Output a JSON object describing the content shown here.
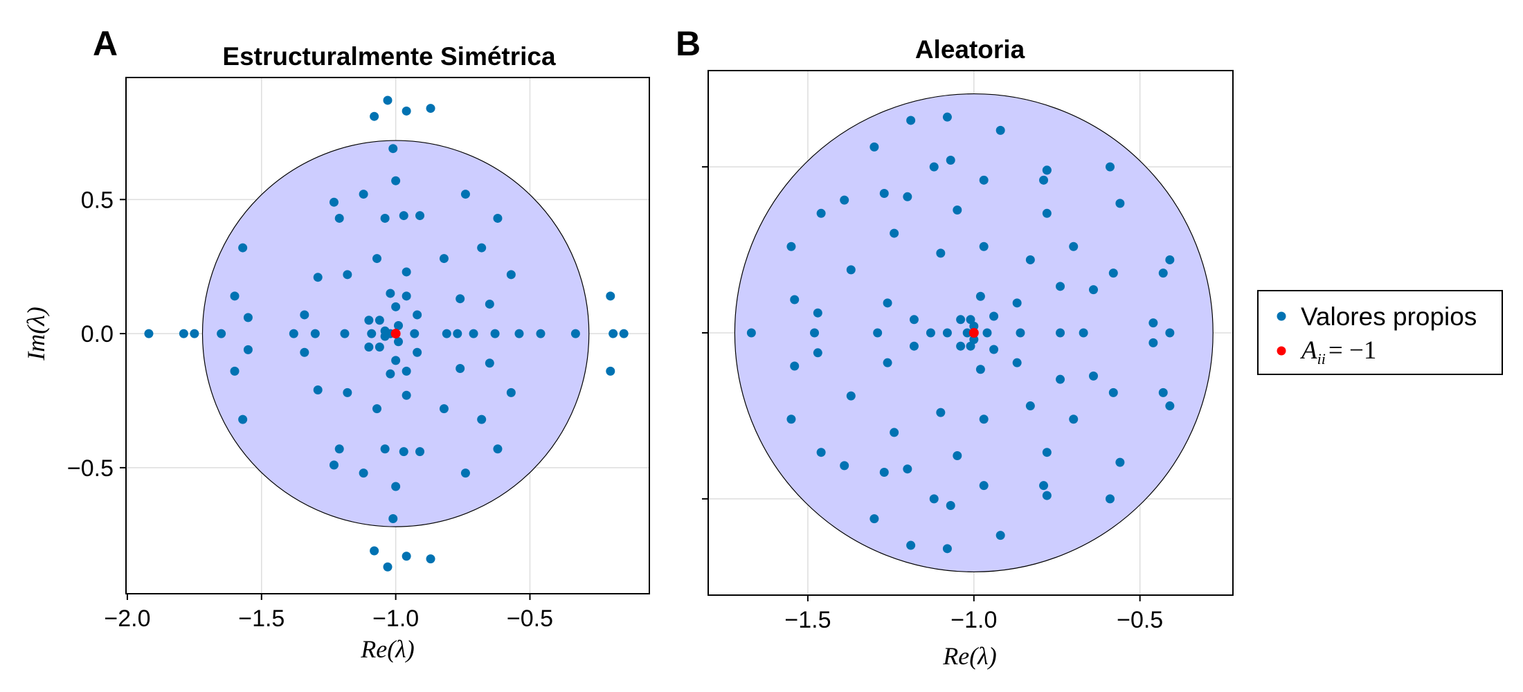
{
  "chart_data": [
    {
      "type": "scatter",
      "panel": "A",
      "title": "Estructuralmente Simétrica",
      "xlabel": "Re(λ)",
      "ylabel": "Im(λ)",
      "xlim": [
        -2.005,
        -0.055
      ],
      "ylim": [
        -0.97,
        0.955
      ],
      "xticks": [
        -2.0,
        -1.5,
        -1.0,
        -0.5
      ],
      "xtick_labels": [
        "−2.0",
        "−1.5",
        "−1.0",
        "−0.5"
      ],
      "yticks": [
        -0.5,
        0.0,
        0.5
      ],
      "ytick_labels": [
        "−0.5",
        "0.0",
        "0.5"
      ],
      "grid": true,
      "circle": {
        "center": [
          -1.0,
          0.0
        ],
        "radius": 0.72,
        "fill": "#ccccff",
        "stroke": "#000000"
      },
      "series": [
        {
          "name": "Valores propios",
          "color": "#0072b2",
          "points": [
            [
              -1.92,
              0.0
            ],
            [
              -1.79,
              0.0
            ],
            [
              -1.75,
              0.0
            ],
            [
              -1.65,
              0.0
            ],
            [
              -1.57,
              0.32
            ],
            [
              -1.57,
              -0.32
            ],
            [
              -1.6,
              0.14
            ],
            [
              -1.6,
              -0.14
            ],
            [
              -1.55,
              0.06
            ],
            [
              -1.55,
              -0.06
            ],
            [
              -1.38,
              0.0
            ],
            [
              -1.34,
              0.07
            ],
            [
              -1.34,
              -0.07
            ],
            [
              -1.29,
              0.21
            ],
            [
              -1.29,
              -0.21
            ],
            [
              -1.3,
              0.0
            ],
            [
              -1.23,
              0.49
            ],
            [
              -1.23,
              -0.49
            ],
            [
              -1.21,
              0.43
            ],
            [
              -1.21,
              -0.43
            ],
            [
              -1.18,
              0.22
            ],
            [
              -1.18,
              -0.22
            ],
            [
              -1.19,
              0.0
            ],
            [
              -1.12,
              0.52
            ],
            [
              -1.12,
              -0.52
            ],
            [
              -1.1,
              0.05
            ],
            [
              -1.1,
              -0.05
            ],
            [
              -1.09,
              0.0
            ],
            [
              -1.07,
              0.28
            ],
            [
              -1.07,
              -0.28
            ],
            [
              -1.06,
              0.05
            ],
            [
              -1.06,
              -0.05
            ],
            [
              -1.04,
              0.43
            ],
            [
              -1.04,
              -0.43
            ],
            [
              -1.04,
              0.01
            ],
            [
              -1.04,
              -0.01
            ],
            [
              -1.02,
              0.15
            ],
            [
              -1.02,
              -0.15
            ],
            [
              -1.02,
              0.0
            ],
            [
              -1.01,
              0.69
            ],
            [
              -1.01,
              -0.69
            ],
            [
              -1.0,
              0.1
            ],
            [
              -1.0,
              -0.1
            ],
            [
              -1.0,
              0.57
            ],
            [
              -1.0,
              -0.57
            ],
            [
              -0.99,
              0.03
            ],
            [
              -0.99,
              -0.03
            ],
            [
              -0.97,
              0.44
            ],
            [
              -0.97,
              -0.44
            ],
            [
              -0.96,
              0.23
            ],
            [
              -0.96,
              -0.23
            ],
            [
              -0.96,
              0.14
            ],
            [
              -0.96,
              -0.14
            ],
            [
              -0.93,
              0.0
            ],
            [
              -0.92,
              0.07
            ],
            [
              -0.92,
              -0.07
            ],
            [
              -0.91,
              0.44
            ],
            [
              -0.91,
              -0.44
            ],
            [
              -0.82,
              0.28
            ],
            [
              -0.82,
              -0.28
            ],
            [
              -0.81,
              0.0
            ],
            [
              -0.77,
              0.0
            ],
            [
              -0.76,
              0.13
            ],
            [
              -0.76,
              -0.13
            ],
            [
              -0.74,
              0.52
            ],
            [
              -0.74,
              -0.52
            ],
            [
              -0.71,
              0.0
            ],
            [
              -0.68,
              0.32
            ],
            [
              -0.68,
              -0.32
            ],
            [
              -0.65,
              0.11
            ],
            [
              -0.65,
              -0.11
            ],
            [
              -0.63,
              0.0
            ],
            [
              -0.62,
              0.43
            ],
            [
              -0.62,
              -0.43
            ],
            [
              -0.57,
              0.22
            ],
            [
              -0.57,
              -0.22
            ],
            [
              -0.54,
              0.0
            ],
            [
              -0.46,
              0.0
            ],
            [
              -0.33,
              0.0
            ],
            [
              -0.2,
              0.14
            ],
            [
              -0.2,
              -0.14
            ],
            [
              -0.19,
              0.0
            ],
            [
              -0.15,
              0.0
            ],
            [
              -1.03,
              0.87
            ],
            [
              -1.03,
              -0.87
            ],
            [
              -1.08,
              0.81
            ],
            [
              -1.08,
              -0.81
            ],
            [
              -0.96,
              0.83
            ],
            [
              -0.96,
              -0.83
            ],
            [
              -0.87,
              0.84
            ],
            [
              -0.87,
              -0.84
            ]
          ]
        },
        {
          "name": "A_ii = −1",
          "color": "#ff0000",
          "points": [
            [
              -1.0,
              0.0
            ]
          ]
        }
      ]
    },
    {
      "type": "scatter",
      "panel": "B",
      "title": "Aleatoria",
      "xlabel": "Re(λ)",
      "ylabel": "",
      "xlim": [
        -1.8,
        -0.22
      ],
      "ylim": [
        -0.79,
        0.79
      ],
      "xticks": [
        -1.5,
        -1.0,
        -0.5
      ],
      "xtick_labels": [
        "−1.5",
        "−1.0",
        "−0.5"
      ],
      "yticks": [
        -0.5,
        0.0,
        0.5
      ],
      "ytick_labels": [
        "",
        "",
        ""
      ],
      "grid": true,
      "circle": {
        "center": [
          -1.0,
          0.0
        ],
        "radius": 0.72,
        "fill": "#ccccff",
        "stroke": "#000000"
      },
      "series": [
        {
          "name": "Valores propios",
          "color": "#0072b2",
          "points": [
            [
              -1.67,
              0.0
            ],
            [
              -1.55,
              0.26
            ],
            [
              -1.55,
              -0.26
            ],
            [
              -1.54,
              0.1
            ],
            [
              -1.54,
              -0.1
            ],
            [
              -1.48,
              0.0
            ],
            [
              -1.47,
              0.06
            ],
            [
              -1.47,
              -0.06
            ],
            [
              -1.46,
              0.36
            ],
            [
              -1.46,
              -0.36
            ],
            [
              -1.39,
              0.4
            ],
            [
              -1.39,
              -0.4
            ],
            [
              -1.37,
              0.19
            ],
            [
              -1.37,
              -0.19
            ],
            [
              -1.3,
              0.56
            ],
            [
              -1.3,
              -0.56
            ],
            [
              -1.29,
              0.0
            ],
            [
              -1.27,
              0.42
            ],
            [
              -1.27,
              -0.42
            ],
            [
              -1.26,
              0.09
            ],
            [
              -1.26,
              -0.09
            ],
            [
              -1.24,
              0.3
            ],
            [
              -1.24,
              -0.3
            ],
            [
              -1.2,
              0.41
            ],
            [
              -1.2,
              -0.41
            ],
            [
              -1.19,
              0.64
            ],
            [
              -1.19,
              -0.64
            ],
            [
              -1.18,
              0.04
            ],
            [
              -1.18,
              -0.04
            ],
            [
              -1.13,
              0.0
            ],
            [
              -1.12,
              0.5
            ],
            [
              -1.12,
              -0.5
            ],
            [
              -1.1,
              0.24
            ],
            [
              -1.1,
              -0.24
            ],
            [
              -1.08,
              0.0
            ],
            [
              -1.08,
              0.65
            ],
            [
              -1.08,
              -0.65
            ],
            [
              -1.07,
              0.52
            ],
            [
              -1.07,
              -0.52
            ],
            [
              -1.05,
              0.37
            ],
            [
              -1.05,
              -0.37
            ],
            [
              -1.04,
              0.04
            ],
            [
              -1.04,
              -0.04
            ],
            [
              -1.02,
              0.0
            ],
            [
              -1.01,
              0.04
            ],
            [
              -1.01,
              -0.04
            ],
            [
              -1.0,
              0.02
            ],
            [
              -1.0,
              -0.02
            ],
            [
              -0.98,
              0.11
            ],
            [
              -0.98,
              -0.11
            ],
            [
              -0.97,
              0.46
            ],
            [
              -0.97,
              -0.46
            ],
            [
              -0.97,
              0.26
            ],
            [
              -0.97,
              -0.26
            ],
            [
              -0.96,
              0.0
            ],
            [
              -0.94,
              0.05
            ],
            [
              -0.94,
              -0.05
            ],
            [
              -0.92,
              0.61
            ],
            [
              -0.92,
              -0.61
            ],
            [
              -0.86,
              0.0
            ],
            [
              -0.87,
              0.09
            ],
            [
              -0.87,
              -0.09
            ],
            [
              -0.83,
              0.22
            ],
            [
              -0.83,
              -0.22
            ],
            [
              -0.78,
              0.49
            ],
            [
              -0.78,
              -0.49
            ],
            [
              -0.78,
              0.36
            ],
            [
              -0.78,
              -0.36
            ],
            [
              -0.74,
              0.14
            ],
            [
              -0.74,
              -0.14
            ],
            [
              -0.74,
              0.0
            ],
            [
              -0.7,
              0.26
            ],
            [
              -0.7,
              -0.26
            ],
            [
              -0.67,
              0.0
            ],
            [
              -0.64,
              0.13
            ],
            [
              -0.64,
              -0.13
            ],
            [
              -0.59,
              0.5
            ],
            [
              -0.59,
              -0.5
            ],
            [
              -0.58,
              0.18
            ],
            [
              -0.58,
              -0.18
            ],
            [
              -0.56,
              0.39
            ],
            [
              -0.56,
              -0.39
            ],
            [
              -0.46,
              0.03
            ],
            [
              -0.46,
              -0.03
            ],
            [
              -0.43,
              0.18
            ],
            [
              -0.43,
              -0.18
            ],
            [
              -0.41,
              0.0
            ],
            [
              -0.41,
              0.22
            ],
            [
              -0.41,
              -0.22
            ],
            [
              -0.78,
              0.49
            ],
            [
              -0.79,
              -0.46
            ],
            [
              -0.79,
              0.46
            ]
          ]
        },
        {
          "name": "A_ii = −1",
          "color": "#ff0000",
          "points": [
            [
              -1.0,
              0.0
            ]
          ]
        }
      ]
    }
  ],
  "legend": {
    "position": "right",
    "entries": [
      {
        "label": "Valores propios",
        "color": "#0072b2"
      },
      {
        "label_base": "A",
        "label_sub": "ii",
        "label_rest": "= −1",
        "color": "#ff0000"
      }
    ]
  }
}
